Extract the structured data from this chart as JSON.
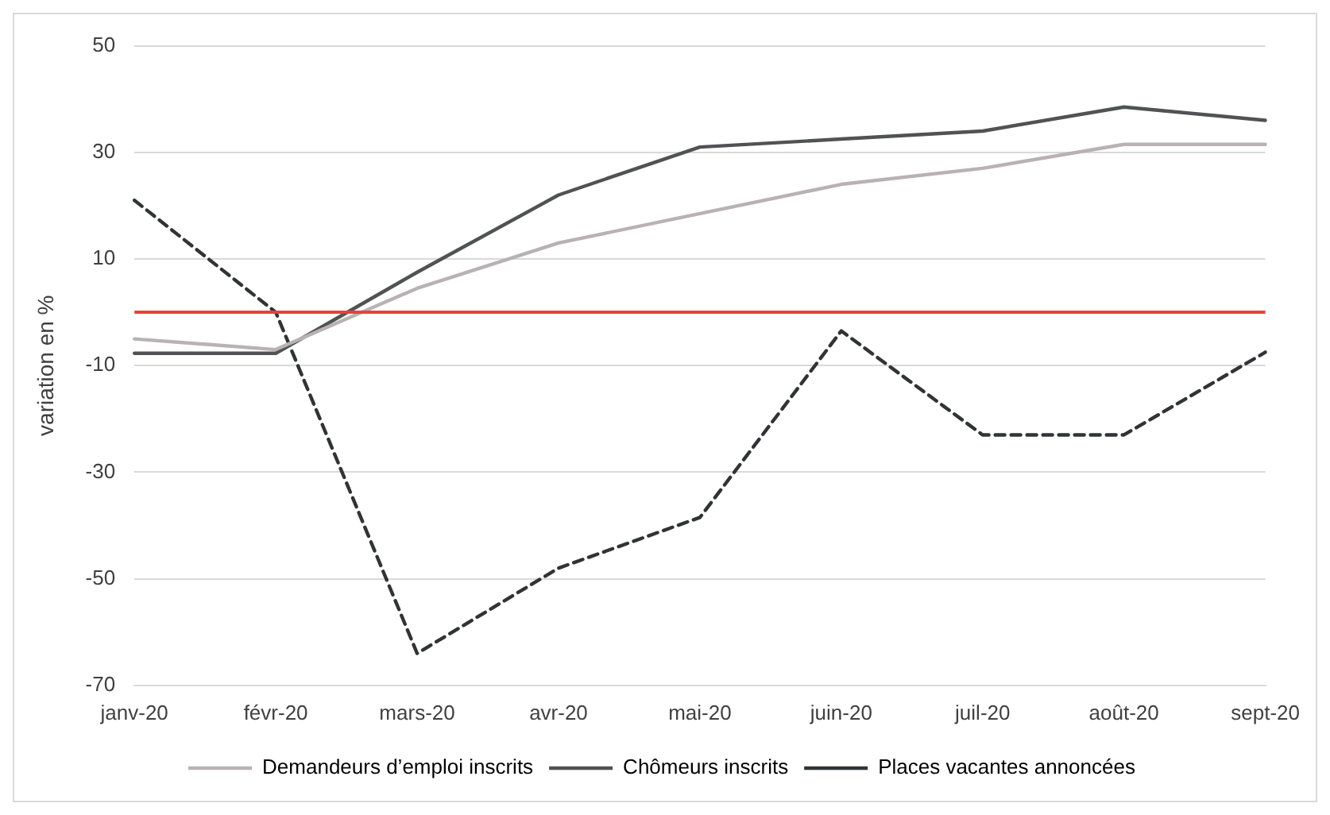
{
  "chart_data": {
    "type": "line",
    "ylabel": "variation en %",
    "categories": [
      "janv-20",
      "févr-20",
      "mars-20",
      "avr-20",
      "mai-20",
      "juin-20",
      "juil-20",
      "août-20",
      "sept-20"
    ],
    "series": [
      {
        "name": "Demandeurs d’emploi inscrits",
        "color": "#b8b2b4",
        "values": [
          -5,
          -7,
          4.5,
          13,
          18.5,
          24,
          27,
          31.5,
          31.5
        ]
      },
      {
        "name": "Chômeurs inscrits",
        "color": "#505354",
        "values": [
          -7.7,
          -7.7,
          7.5,
          22,
          31,
          32.5,
          34,
          38.5,
          36
        ]
      },
      {
        "name": "Places vacantes annoncées",
        "color": "#303436",
        "line_style": "dashed",
        "values": [
          21,
          0,
          -64,
          -48,
          -38.5,
          -3.5,
          -23,
          -23,
          -7.5
        ]
      }
    ],
    "ylim": [
      -70,
      50
    ],
    "yticks": [
      -70,
      -50,
      -30,
      -10,
      10,
      30,
      50
    ],
    "grid": "y",
    "legend": "bottom",
    "marker": "none",
    "ref_lines": [
      {
        "axis": "y",
        "value": 0,
        "color": "#e8413c"
      }
    ]
  }
}
